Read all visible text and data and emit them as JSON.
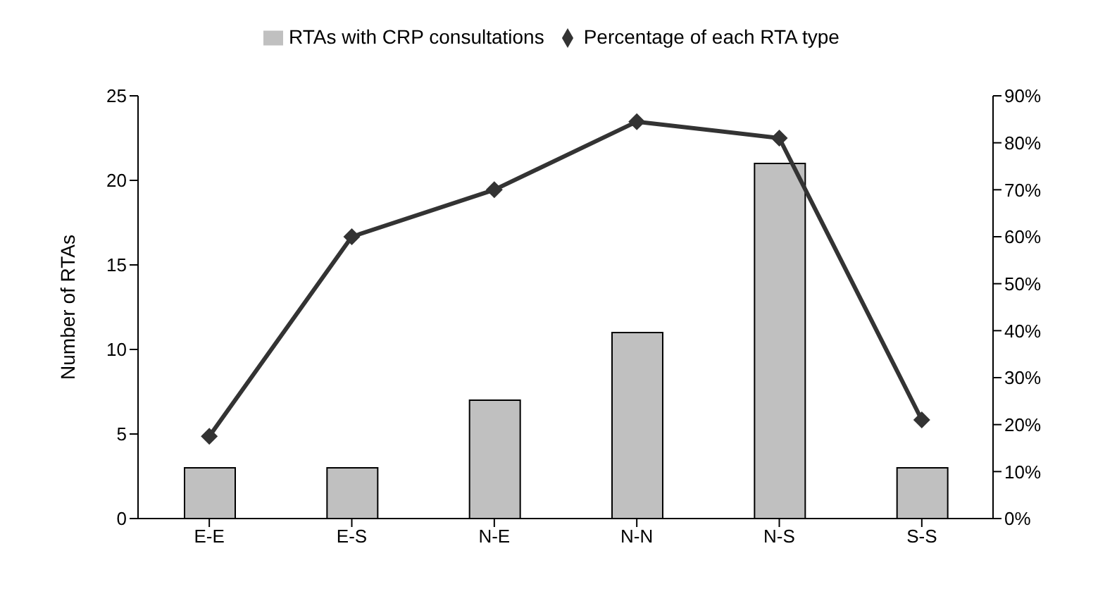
{
  "chart_data": {
    "type": "bar",
    "categories": [
      "E-E",
      "E-S",
      "N-E",
      "N-N",
      "N-S",
      "S-S"
    ],
    "series": [
      {
        "name": "RTAs with CRP consultations",
        "color": "#c0c0c0",
        "values": [
          3,
          3,
          7,
          11,
          21,
          3
        ]
      },
      {
        "name": "Percentage of each RTA type",
        "type": "line",
        "axis": "y2",
        "color": "#333333",
        "marker": "diamond",
        "values": [
          17.5,
          60,
          70,
          84.5,
          81,
          21
        ]
      }
    ],
    "ylabel": "Number of RTAs",
    "ylim": [
      0,
      25
    ],
    "yticks": [
      0,
      5,
      10,
      15,
      20,
      25
    ],
    "y2lim": [
      0,
      90
    ],
    "y2ticks": [
      {
        "value": 0,
        "label": "0%"
      },
      {
        "value": 10,
        "label": "10%"
      },
      {
        "value": 20,
        "label": "20%"
      },
      {
        "value": 30,
        "label": "30%"
      },
      {
        "value": 40,
        "label": "40%"
      },
      {
        "value": 50,
        "label": "50%"
      },
      {
        "value": 60,
        "label": "60%"
      },
      {
        "value": 70,
        "label": "70%"
      },
      {
        "value": 80,
        "label": "80%"
      },
      {
        "value": 90,
        "label": "90%"
      }
    ],
    "grid": false,
    "legend": "top"
  }
}
